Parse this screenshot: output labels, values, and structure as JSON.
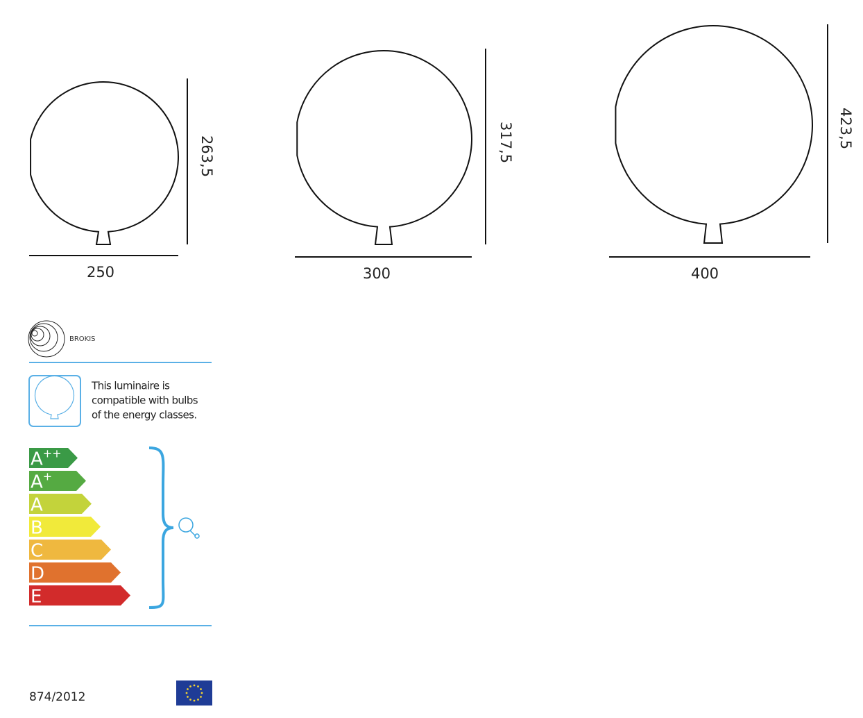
{
  "drawings": [
    {
      "width_label": "250",
      "height_label": "263,5"
    },
    {
      "width_label": "300",
      "height_label": "317,5"
    },
    {
      "width_label": "400",
      "height_label": "423,5"
    }
  ],
  "energy_label": {
    "brand": "BROKIS",
    "compatibility_text": [
      "This luminaire is",
      "compatible with bulbs",
      "of the energy classes."
    ],
    "classes": [
      {
        "letter": "A",
        "sup": "++",
        "color": "#3a9a46"
      },
      {
        "letter": "A",
        "sup": "+",
        "color": "#55aa42"
      },
      {
        "letter": "A",
        "color": "#c3d33b"
      },
      {
        "letter": "B",
        "color": "#f1ea3a"
      },
      {
        "letter": "C",
        "color": "#efb83f"
      },
      {
        "letter": "D",
        "color": "#e0722e"
      },
      {
        "letter": "E",
        "color": "#d22b2b"
      }
    ],
    "regulation": "874/2012"
  }
}
